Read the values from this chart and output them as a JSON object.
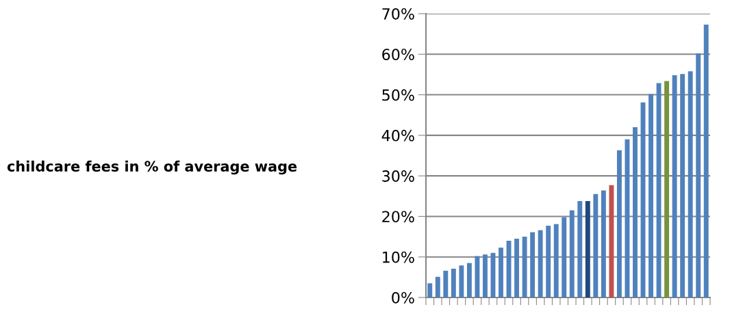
{
  "chart_data": {
    "type": "bar",
    "annotations": [
      "childcare fees in % of average wage"
    ],
    "categories": [
      null,
      null,
      null,
      null,
      null,
      null,
      null,
      null,
      null,
      null,
      null,
      null,
      null,
      null,
      null,
      null,
      null,
      null,
      null,
      null,
      null,
      null,
      null,
      null,
      null,
      null,
      null,
      null,
      null,
      null,
      null,
      null,
      null,
      null,
      null,
      null
    ],
    "values": [
      3.5,
      5.1,
      6.6,
      7.1,
      7.9,
      8.5,
      10.2,
      10.6,
      11.0,
      12.3,
      14.0,
      14.5,
      15.0,
      16.1,
      16.6,
      17.7,
      18.1,
      19.8,
      21.5,
      23.8,
      23.8,
      25.5,
      26.4,
      27.7,
      36.3,
      39.0,
      42.0,
      48.1,
      50.2,
      52.9,
      53.4,
      54.8,
      55.1,
      55.8,
      60.2,
      67.3
    ],
    "colors": [
      "#4f81bd",
      "#4f81bd",
      "#4f81bd",
      "#4f81bd",
      "#4f81bd",
      "#4f81bd",
      "#4f81bd",
      "#4f81bd",
      "#4f81bd",
      "#4f81bd",
      "#4f81bd",
      "#4f81bd",
      "#4f81bd",
      "#4f81bd",
      "#4f81bd",
      "#4f81bd",
      "#4f81bd",
      "#4f81bd",
      "#4f81bd",
      "#4f81bd",
      "#1f497d",
      "#4f81bd",
      "#4f81bd",
      "#c0504d",
      "#4f81bd",
      "#4f81bd",
      "#4f81bd",
      "#4f81bd",
      "#4f81bd",
      "#4f81bd",
      "#77933c",
      "#4f81bd",
      "#4f81bd",
      "#4f81bd",
      "#4f81bd",
      "#4f81bd"
    ],
    "ylim": [
      0,
      70
    ],
    "yticks": [
      {
        "value": 0,
        "label": "0%"
      },
      {
        "value": 10,
        "label": "10%"
      },
      {
        "value": 20,
        "label": "20%"
      },
      {
        "value": 30,
        "label": "30%"
      },
      {
        "value": 40,
        "label": "40%"
      },
      {
        "value": 50,
        "label": "50%"
      },
      {
        "value": 60,
        "label": "60%"
      },
      {
        "value": 70,
        "label": "70%"
      }
    ],
    "grid": "y",
    "legend": false
  }
}
